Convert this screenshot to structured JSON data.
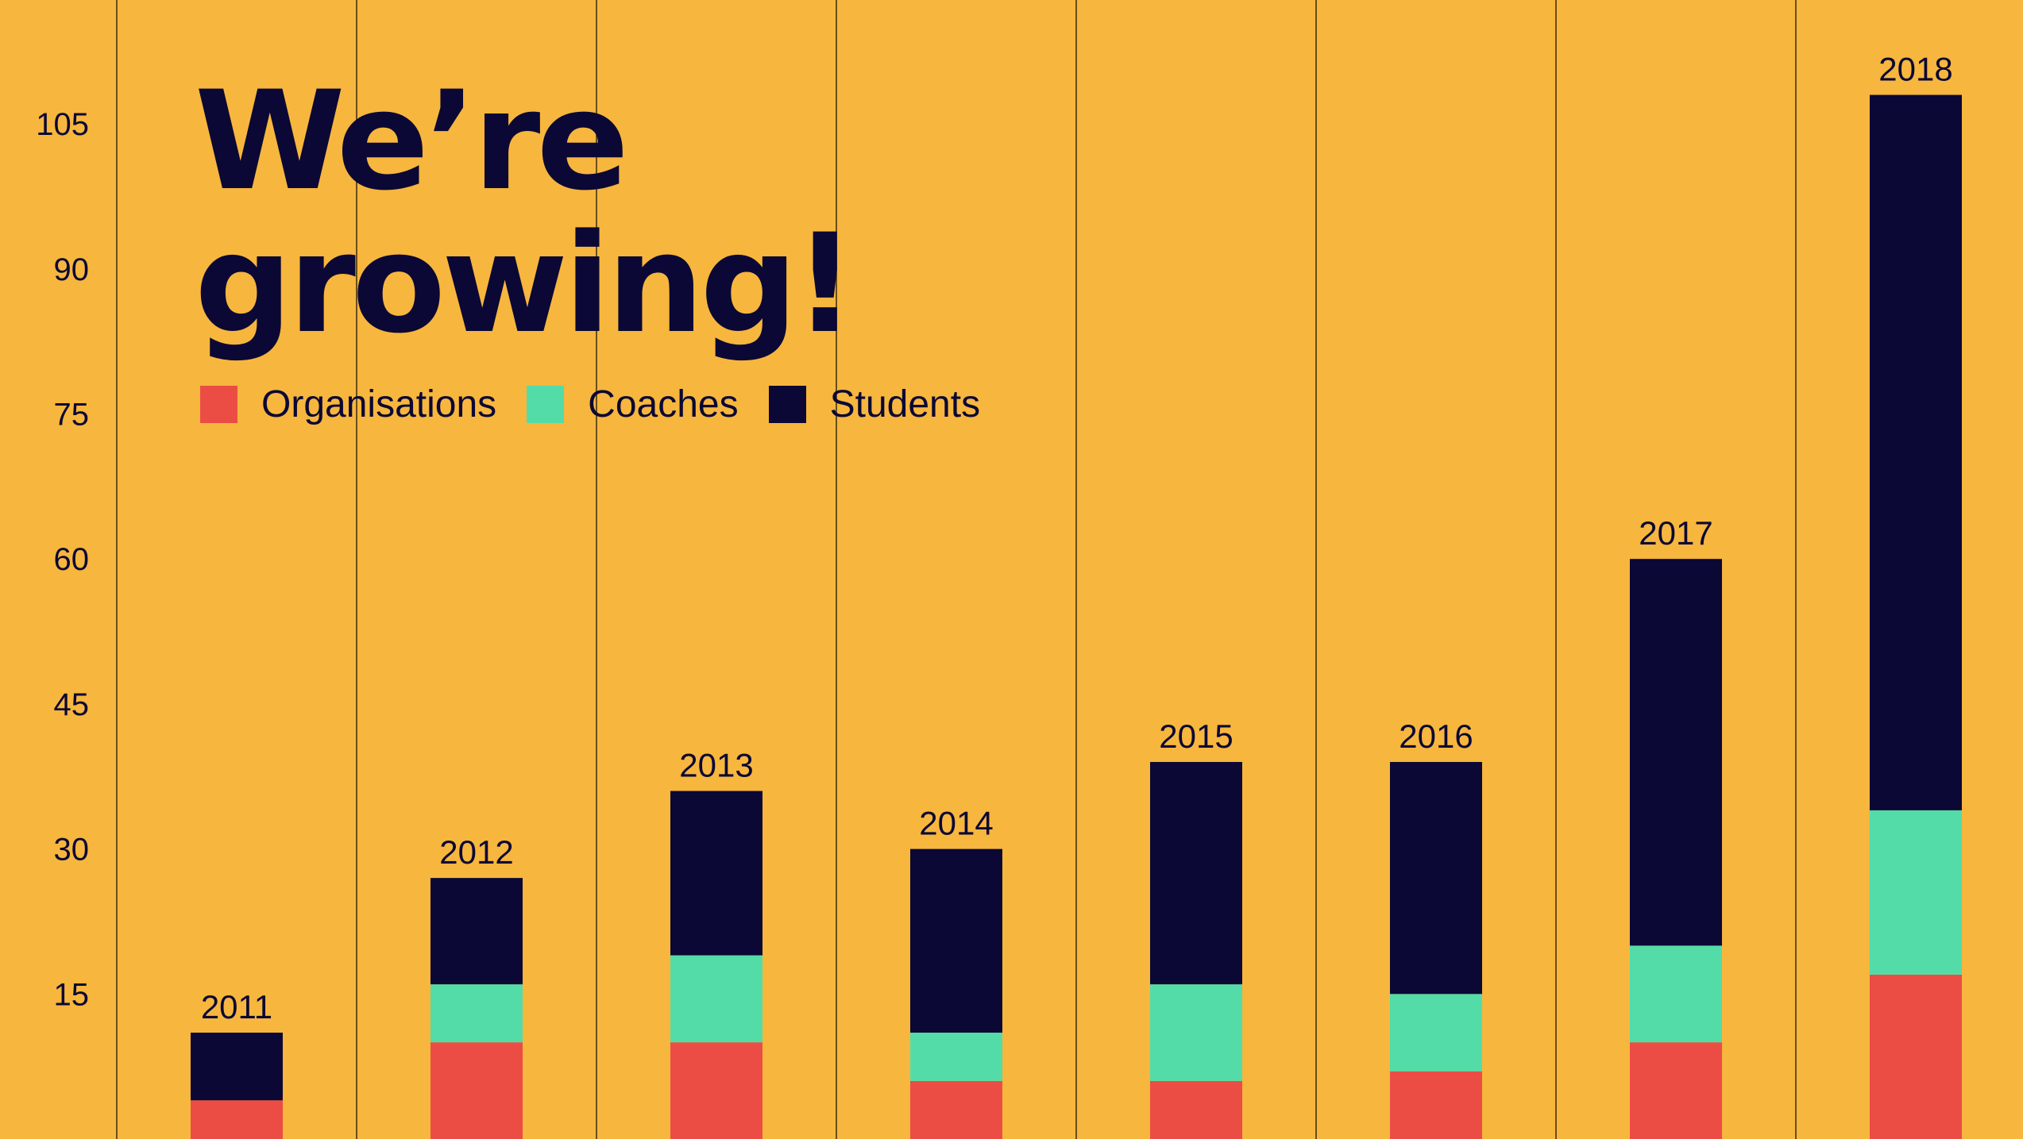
{
  "title": {
    "line1": "We’re",
    "line2": "growing!"
  },
  "colors": {
    "background": "#F7B63D",
    "organisations": "#EB4D45",
    "coaches": "#54DCA8",
    "students": "#0B0835",
    "gridline": "#3A2C10"
  },
  "legend": [
    {
      "label": "Organisations",
      "color": "#EB4D45"
    },
    {
      "label": "Coaches",
      "color": "#54DCA8"
    },
    {
      "label": "Students",
      "color": "#0B0835"
    }
  ],
  "chart_data": {
    "type": "bar",
    "stacked": true,
    "title": "We’re growing!",
    "xlabel": "",
    "ylabel": "",
    "categories": [
      "2011",
      "2012",
      "2013",
      "2014",
      "2015",
      "2016",
      "2017",
      "2018"
    ],
    "series": [
      {
        "name": "Organisations",
        "color": "#EB4D45",
        "values": [
          4,
          10,
          10,
          6,
          6,
          7,
          10,
          17
        ]
      },
      {
        "name": "Coaches",
        "color": "#54DCA8",
        "values": [
          0,
          6,
          9,
          5,
          10,
          8,
          10,
          17
        ]
      },
      {
        "name": "Students",
        "color": "#0B0835",
        "values": [
          7,
          11,
          17,
          19,
          23,
          24,
          40,
          74
        ]
      }
    ],
    "yticks": [
      15,
      30,
      45,
      60,
      75,
      90,
      105
    ],
    "ylim": [
      0,
      118
    ],
    "grid": "vertical separators between categories",
    "legend_position": "top-left",
    "data_labels": "category label above each stacked bar"
  }
}
